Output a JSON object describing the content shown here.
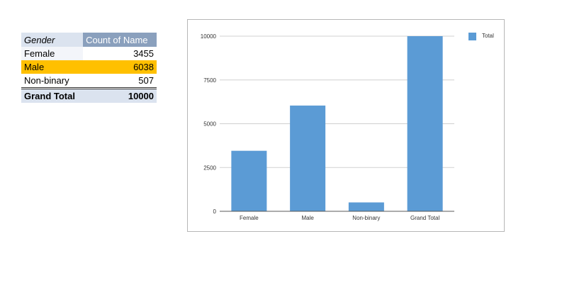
{
  "pivot": {
    "headers": {
      "field": "Gender",
      "value": "Count of Name"
    },
    "rows": [
      {
        "label": "Female",
        "value": "3455"
      },
      {
        "label": "Male",
        "value": "6038"
      },
      {
        "label": "Non-binary",
        "value": "507"
      }
    ],
    "total": {
      "label": "Grand Total",
      "value": "10000"
    },
    "highlight_color": "#ffc000"
  },
  "chart_data": {
    "type": "bar",
    "categories": [
      "Female",
      "Male",
      "Non-binary",
      "Grand Total"
    ],
    "series": [
      {
        "name": "Total",
        "values": [
          3455,
          6038,
          507,
          10000
        ],
        "color": "#5b9bd5"
      }
    ],
    "title": "",
    "xlabel": "",
    "ylabel": "",
    "ylim": [
      0,
      10000
    ],
    "yticks": [
      0,
      2500,
      5000,
      7500,
      10000
    ],
    "grid": true,
    "legend": "top-right"
  }
}
